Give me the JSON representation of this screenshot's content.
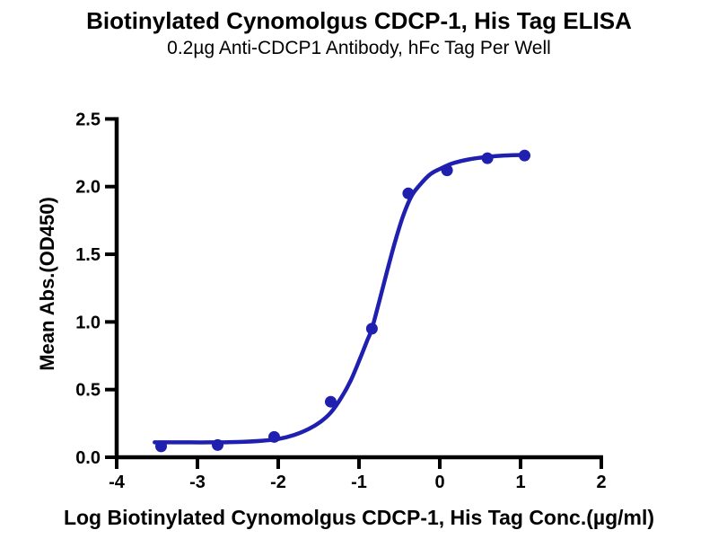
{
  "header": {
    "title": "Biotinylated Cynomolgus CDCP-1, His Tag ELISA",
    "subtitle": "0.2µg Anti-CDCP1 Antibody, hFc Tag Per Well"
  },
  "chart_data": {
    "type": "scatter",
    "title": "Biotinylated Cynomolgus CDCP-1, His Tag ELISA",
    "subtitle": "0.2µg Anti-CDCP1 Antibody, hFc Tag Per Well",
    "xlabel": "Log Biotinylated Cynomolgus CDCP-1, His Tag Conc.(µg/ml)",
    "ylabel": "Mean Abs.(OD450)",
    "xlim": [
      -4,
      2
    ],
    "ylim": [
      0.0,
      2.5
    ],
    "x_ticks": [
      -4,
      -3,
      -2,
      -1,
      0,
      1,
      2
    ],
    "y_ticks": [
      0.0,
      0.5,
      1.0,
      1.5,
      2.0,
      2.5
    ],
    "grid": false,
    "legend": "none",
    "axis_color": "#000000",
    "series": [
      {
        "name": "Biotinylated Cynomolgus CDCP-1, His Tag",
        "marker": "circle",
        "color": "#2020b0",
        "points": [
          {
            "x": -3.45,
            "y": 0.08
          },
          {
            "x": -2.75,
            "y": 0.09
          },
          {
            "x": -2.05,
            "y": 0.15
          },
          {
            "x": -1.35,
            "y": 0.41
          },
          {
            "x": -0.84,
            "y": 0.95
          },
          {
            "x": -0.39,
            "y": 1.95
          },
          {
            "x": 0.09,
            "y": 2.12
          },
          {
            "x": 0.59,
            "y": 2.21
          },
          {
            "x": 1.05,
            "y": 2.23
          }
        ]
      }
    ],
    "fit_curve": {
      "model": "4PL sigmoidal dose-response fit",
      "color": "#2020b0",
      "bottom": 0.11,
      "top": 2.24,
      "samples": [
        [
          -3.53,
          0.11
        ],
        [
          -3.2,
          0.11
        ],
        [
          -2.85,
          0.11
        ],
        [
          -2.5,
          0.113
        ],
        [
          -2.2,
          0.122
        ],
        [
          -2.0,
          0.135
        ],
        [
          -1.8,
          0.165
        ],
        [
          -1.62,
          0.21
        ],
        [
          -1.48,
          0.26
        ],
        [
          -1.35,
          0.33
        ],
        [
          -1.22,
          0.44
        ],
        [
          -1.1,
          0.57
        ],
        [
          -0.98,
          0.74
        ],
        [
          -0.9,
          0.86
        ],
        [
          -0.84,
          0.95
        ],
        [
          -0.75,
          1.15
        ],
        [
          -0.65,
          1.38
        ],
        [
          -0.55,
          1.6
        ],
        [
          -0.45,
          1.79
        ],
        [
          -0.35,
          1.93
        ],
        [
          -0.25,
          2.01
        ],
        [
          -0.12,
          2.09
        ],
        [
          0.0,
          2.13
        ],
        [
          0.15,
          2.17
        ],
        [
          0.35,
          2.2
        ],
        [
          0.59,
          2.22
        ],
        [
          0.8,
          2.23
        ],
        [
          1.07,
          2.235
        ]
      ]
    }
  }
}
